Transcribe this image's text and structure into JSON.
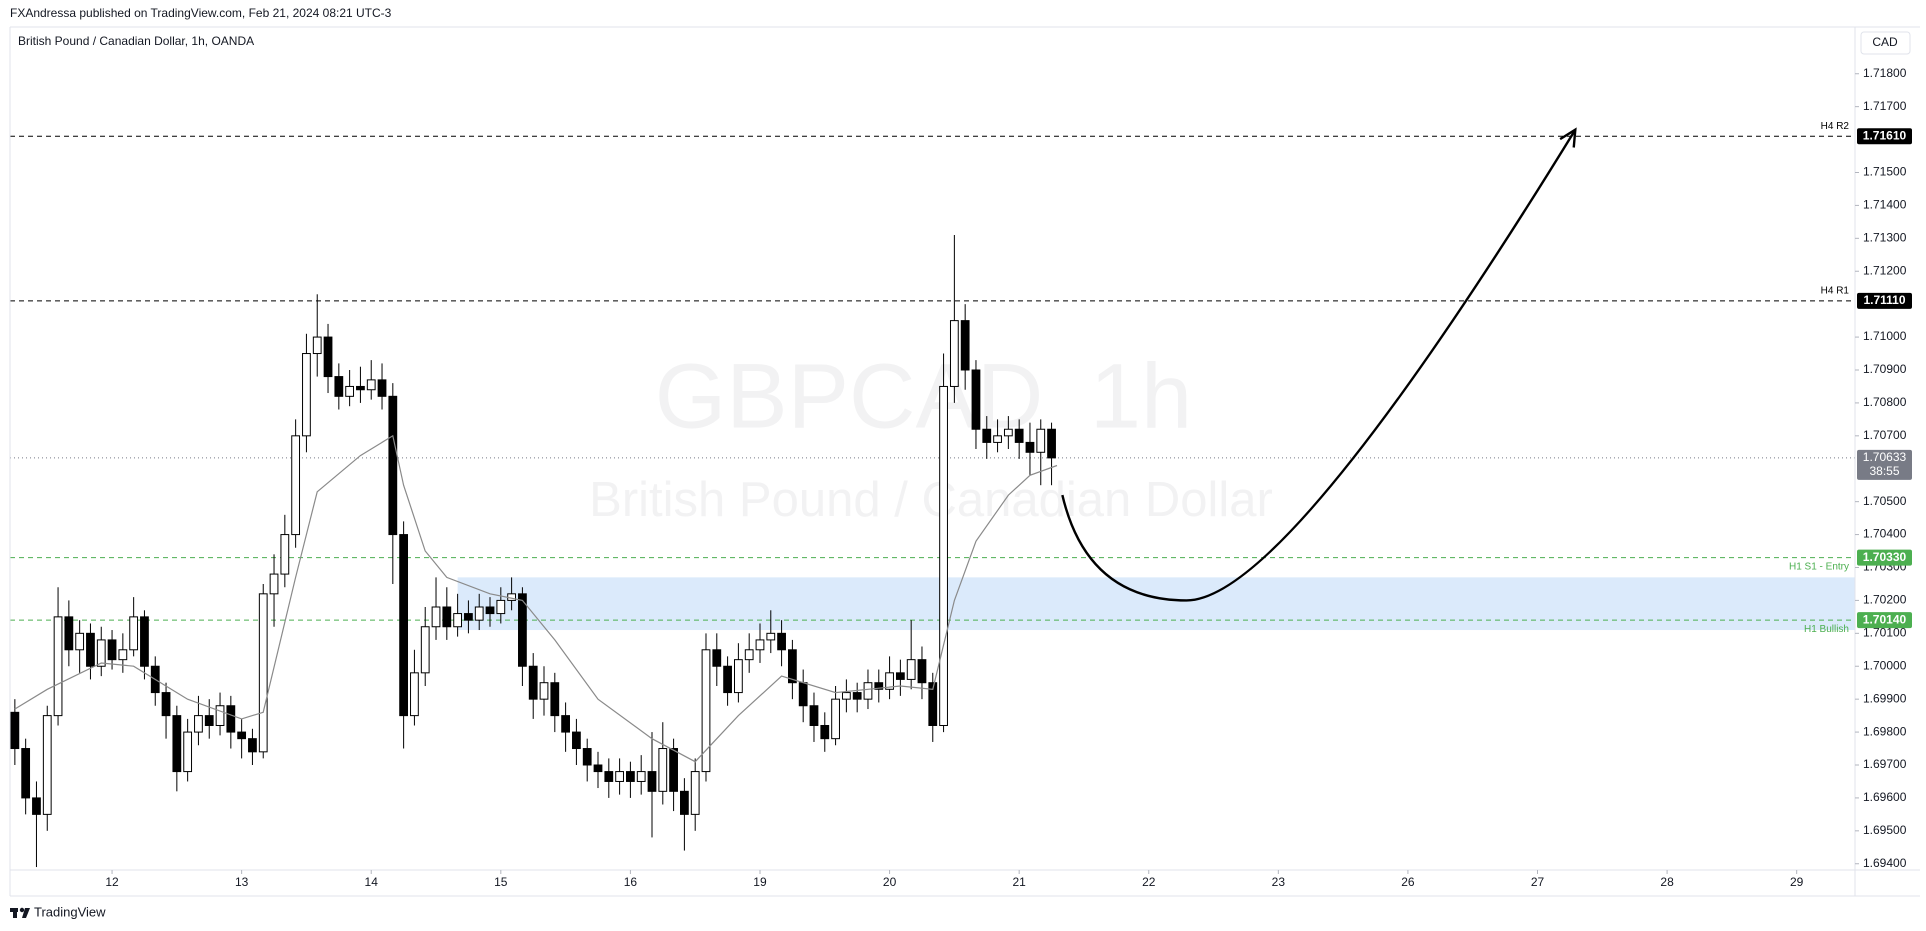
{
  "header": {
    "publisher": "FXAndressa published on TradingView.com, Feb 21, 2024 08:21 UTC-3",
    "brand": "TradingView"
  },
  "chart_data": {
    "type": "candlestick",
    "title": "British Pound / Canadian Dollar, 1h, OANDA",
    "watermark_symbol": "GBPCAD",
    "watermark_interval": "1h",
    "watermark_name": "British Pound / Canadian Dollar",
    "currency": "CAD",
    "up_color": "#ffffff",
    "down_color": "#000000",
    "x": [
      -18,
      -16,
      -14,
      -12,
      -10,
      -8,
      -6,
      -4,
      -2,
      0,
      2,
      4,
      6,
      8,
      10,
      12,
      14,
      16,
      18,
      20,
      22,
      24,
      26,
      28,
      30,
      32,
      34,
      36,
      38,
      40,
      42,
      44,
      46,
      48,
      50,
      52,
      54,
      56,
      58,
      60,
      62,
      64,
      66,
      68,
      70,
      72,
      74,
      76,
      78,
      80,
      82,
      84,
      86,
      88,
      90,
      92,
      94,
      96,
      98,
      100,
      102,
      104,
      106,
      108,
      110,
      112,
      114,
      116,
      118,
      120,
      122,
      124,
      126,
      128,
      130,
      132,
      134,
      136,
      138,
      140,
      142,
      144,
      146,
      148,
      150,
      152,
      154,
      156,
      158,
      160,
      162,
      164,
      166,
      168,
      170,
      172,
      174
    ],
    "ohlc": [
      [
        1.6986,
        1.699,
        1.697,
        1.6975
      ],
      [
        1.6975,
        1.6978,
        1.6955,
        1.696
      ],
      [
        1.696,
        1.6965,
        1.6939,
        1.6955
      ],
      [
        1.6955,
        1.6988,
        1.695,
        1.6985
      ],
      [
        1.6985,
        1.7024,
        1.6982,
        1.7015
      ],
      [
        1.7015,
        1.702,
        1.7,
        1.7005
      ],
      [
        1.7005,
        1.7014,
        1.6998,
        1.701
      ],
      [
        1.701,
        1.7013,
        1.6996,
        1.7
      ],
      [
        1.7,
        1.7012,
        1.6997,
        1.7008
      ],
      [
        1.7008,
        1.7011,
        1.6999,
        1.7002
      ],
      [
        1.7002,
        1.701,
        1.6998,
        1.7005
      ],
      [
        1.7005,
        1.7021,
        1.7003,
        1.7015
      ],
      [
        1.7015,
        1.7017,
        1.6996,
        1.7
      ],
      [
        1.7,
        1.7003,
        1.6988,
        1.6992
      ],
      [
        1.6992,
        1.6995,
        1.6978,
        1.6985
      ],
      [
        1.6985,
        1.6988,
        1.6962,
        1.6968
      ],
      [
        1.6968,
        1.6984,
        1.6965,
        1.698
      ],
      [
        1.698,
        1.6991,
        1.6976,
        1.6985
      ],
      [
        1.6985,
        1.699,
        1.6978,
        1.6982
      ],
      [
        1.6982,
        1.6992,
        1.6979,
        1.6988
      ],
      [
        1.6988,
        1.6991,
        1.6975,
        1.698
      ],
      [
        1.698,
        1.6984,
        1.6972,
        1.6978
      ],
      [
        1.6978,
        1.6981,
        1.697,
        1.6974
      ],
      [
        1.6974,
        1.7025,
        1.6972,
        1.7022
      ],
      [
        1.7022,
        1.7034,
        1.7012,
        1.7028
      ],
      [
        1.7028,
        1.7046,
        1.7024,
        1.704
      ],
      [
        1.704,
        1.7075,
        1.7036,
        1.707
      ],
      [
        1.707,
        1.7101,
        1.7065,
        1.7095
      ],
      [
        1.7095,
        1.7113,
        1.7088,
        1.71
      ],
      [
        1.71,
        1.7104,
        1.7083,
        1.7088
      ],
      [
        1.7088,
        1.7092,
        1.7078,
        1.7082
      ],
      [
        1.7082,
        1.709,
        1.7079,
        1.7085
      ],
      [
        1.7085,
        1.7091,
        1.708,
        1.7084
      ],
      [
        1.7084,
        1.7093,
        1.7081,
        1.7087
      ],
      [
        1.7087,
        1.7092,
        1.7078,
        1.7082
      ],
      [
        1.7082,
        1.7086,
        1.7025,
        1.704
      ],
      [
        1.704,
        1.7044,
        1.6975,
        1.6985
      ],
      [
        1.6985,
        1.7005,
        1.6982,
        1.6998
      ],
      [
        1.6998,
        1.7018,
        1.6994,
        1.7012
      ],
      [
        1.7012,
        1.7027,
        1.7008,
        1.7018
      ],
      [
        1.7018,
        1.7024,
        1.7008,
        1.7012
      ],
      [
        1.7012,
        1.7022,
        1.7009,
        1.7016
      ],
      [
        1.7016,
        1.702,
        1.701,
        1.7014
      ],
      [
        1.7014,
        1.7022,
        1.7011,
        1.7018
      ],
      [
        1.7018,
        1.7021,
        1.7012,
        1.7016
      ],
      [
        1.7016,
        1.7024,
        1.7013,
        1.702
      ],
      [
        1.702,
        1.7027,
        1.7017,
        1.7022
      ],
      [
        1.7022,
        1.7024,
        1.6994,
        1.7
      ],
      [
        1.7,
        1.7004,
        1.6984,
        1.699
      ],
      [
        1.699,
        1.7,
        1.6985,
        1.6995
      ],
      [
        1.6995,
        1.6998,
        1.698,
        1.6985
      ],
      [
        1.6985,
        1.6989,
        1.6974,
        1.698
      ],
      [
        1.698,
        1.6984,
        1.697,
        1.6975
      ],
      [
        1.6975,
        1.6978,
        1.6965,
        1.697
      ],
      [
        1.697,
        1.6974,
        1.6963,
        1.6968
      ],
      [
        1.6968,
        1.6972,
        1.696,
        1.6965
      ],
      [
        1.6965,
        1.6972,
        1.6961,
        1.6968
      ],
      [
        1.6968,
        1.6971,
        1.696,
        1.6965
      ],
      [
        1.6965,
        1.6973,
        1.6961,
        1.6968
      ],
      [
        1.6968,
        1.698,
        1.6948,
        1.6962
      ],
      [
        1.6962,
        1.6983,
        1.6958,
        1.6975
      ],
      [
        1.6975,
        1.6978,
        1.6956,
        1.6962
      ],
      [
        1.6962,
        1.6966,
        1.6944,
        1.6955
      ],
      [
        1.6955,
        1.6972,
        1.695,
        1.6968
      ],
      [
        1.6968,
        1.701,
        1.6965,
        1.7005
      ],
      [
        1.7005,
        1.701,
        1.6994,
        1.7
      ],
      [
        1.7,
        1.7003,
        1.6988,
        1.6992
      ],
      [
        1.6992,
        1.7007,
        1.6989,
        1.7002
      ],
      [
        1.7002,
        1.701,
        1.6998,
        1.7005
      ],
      [
        1.7005,
        1.7013,
        1.7001,
        1.7008
      ],
      [
        1.7008,
        1.7017,
        1.7004,
        1.701
      ],
      [
        1.701,
        1.7014,
        1.7,
        1.7005
      ],
      [
        1.7005,
        1.7008,
        1.699,
        1.6995
      ],
      [
        1.6995,
        1.6999,
        1.6983,
        1.6988
      ],
      [
        1.6988,
        1.6992,
        1.6977,
        1.6982
      ],
      [
        1.6982,
        1.6986,
        1.6974,
        1.6978
      ],
      [
        1.6978,
        1.6994,
        1.6976,
        1.699
      ],
      [
        1.699,
        1.6996,
        1.6986,
        1.6992
      ],
      [
        1.6992,
        1.6995,
        1.6986,
        1.699
      ],
      [
        1.699,
        1.6999,
        1.6987,
        1.6995
      ],
      [
        1.6995,
        1.6999,
        1.6989,
        1.6993
      ],
      [
        1.6993,
        1.7003,
        1.699,
        1.6998
      ],
      [
        1.6998,
        1.7002,
        1.6991,
        1.6996
      ],
      [
        1.6996,
        1.7014,
        1.6993,
        1.7002
      ],
      [
        1.7002,
        1.7006,
        1.699,
        1.6995
      ],
      [
        1.6995,
        1.6998,
        1.6977,
        1.6982
      ],
      [
        1.6982,
        1.7095,
        1.698,
        1.7085
      ],
      [
        1.7085,
        1.7131,
        1.708,
        1.7105
      ],
      [
        1.7105,
        1.711,
        1.7084,
        1.709
      ],
      [
        1.709,
        1.7093,
        1.7066,
        1.7072
      ],
      [
        1.7072,
        1.7076,
        1.7063,
        1.7068
      ],
      [
        1.7068,
        1.7075,
        1.7065,
        1.707
      ],
      [
        1.707,
        1.7076,
        1.7066,
        1.7072
      ],
      [
        1.7072,
        1.7075,
        1.7063,
        1.7068
      ],
      [
        1.7068,
        1.7074,
        1.7058,
        1.7065
      ],
      [
        1.7065,
        1.7075,
        1.7055,
        1.7072
      ],
      [
        1.7072,
        1.7074,
        1.7055,
        1.70633
      ]
    ],
    "ema": {
      "color": "#8a8a8a",
      "x": [
        -18,
        -12,
        -2,
        4,
        14,
        24,
        28,
        34,
        38,
        46,
        52,
        54,
        58,
        62,
        70,
        76,
        82,
        90,
        100,
        108,
        116,
        124,
        134,
        146,
        152,
        156,
        160,
        166,
        170,
        175
      ],
      "values": [
        1.6987,
        1.6993,
        1.7001,
        1.7,
        1.699,
        1.6984,
        1.6986,
        1.7027,
        1.7053,
        1.7064,
        1.707,
        1.7055,
        1.7035,
        1.7027,
        1.7022,
        1.702,
        1.7008,
        1.699,
        1.6978,
        1.6971,
        1.6985,
        1.6997,
        1.6992,
        1.6994,
        1.6993,
        1.702,
        1.7038,
        1.7052,
        1.7058,
        1.7061
      ]
    },
    "zone": {
      "x_start": 64,
      "top": 1.7027,
      "bottom": 1.7011,
      "color": "#dbeafb"
    },
    "levels": [
      {
        "name": "H4 R2",
        "value": 1.7161,
        "label": "1.71610",
        "color": "#000000",
        "name_position": "above"
      },
      {
        "name": "H4 R1",
        "value": 1.7111,
        "label": "1.71110",
        "color": "#000000",
        "name_position": "above"
      },
      {
        "name": "H1 S1 - Entry",
        "value": 1.7033,
        "label": "1.70330",
        "color": "#4caf50",
        "name_position": "below"
      },
      {
        "name": "H1 Bullish",
        "value": 1.7014,
        "label": "1.70140",
        "color": "#4caf50",
        "name_position": "below"
      }
    ],
    "last_price": {
      "value": 1.70633,
      "label": "1.70633",
      "countdown": "38:55",
      "color": "#787b86"
    },
    "projection": {
      "x": [
        176,
        199,
        271
      ],
      "values": [
        1.7052,
        1.702,
        1.7163
      ],
      "color": "#000000"
    },
    "xlim": [
      -18.9,
      322.8
    ],
    "ylim": [
      1.69381,
      1.71942
    ],
    "xticks": [
      {
        "value": 0,
        "label": "12"
      },
      {
        "value": 24,
        "label": "13"
      },
      {
        "value": 48,
        "label": "14"
      },
      {
        "value": 72,
        "label": "15"
      },
      {
        "value": 96,
        "label": "16"
      },
      {
        "value": 120,
        "label": "19"
      },
      {
        "value": 144,
        "label": "20"
      },
      {
        "value": 168,
        "label": "21"
      },
      {
        "value": 192,
        "label": "22"
      },
      {
        "value": 216,
        "label": "23"
      },
      {
        "value": 240,
        "label": "26"
      },
      {
        "value": 264,
        "label": "27"
      },
      {
        "value": 288,
        "label": "28"
      },
      {
        "value": 312,
        "label": "29"
      }
    ],
    "yticks": [
      {
        "value": 1.718,
        "label": "1.71800"
      },
      {
        "value": 1.717,
        "label": "1.71700"
      },
      {
        "value": 1.715,
        "label": "1.71500"
      },
      {
        "value": 1.714,
        "label": "1.71400"
      },
      {
        "value": 1.713,
        "label": "1.71300"
      },
      {
        "value": 1.712,
        "label": "1.71200"
      },
      {
        "value": 1.71,
        "label": "1.71000"
      },
      {
        "value": 1.709,
        "label": "1.70900"
      },
      {
        "value": 1.708,
        "label": "1.70800"
      },
      {
        "value": 1.707,
        "label": "1.70700"
      },
      {
        "value": 1.705,
        "label": "1.70500"
      },
      {
        "value": 1.704,
        "label": "1.70400"
      },
      {
        "value": 1.703,
        "label": "1.70300"
      },
      {
        "value": 1.702,
        "label": "1.70200"
      },
      {
        "value": 1.701,
        "label": "1.70100"
      },
      {
        "value": 1.7,
        "label": "1.70000"
      },
      {
        "value": 1.699,
        "label": "1.69900"
      },
      {
        "value": 1.698,
        "label": "1.69800"
      },
      {
        "value": 1.697,
        "label": "1.69700"
      },
      {
        "value": 1.696,
        "label": "1.69600"
      },
      {
        "value": 1.695,
        "label": "1.69500"
      },
      {
        "value": 1.694,
        "label": "1.69400"
      }
    ],
    "grid": false
  }
}
